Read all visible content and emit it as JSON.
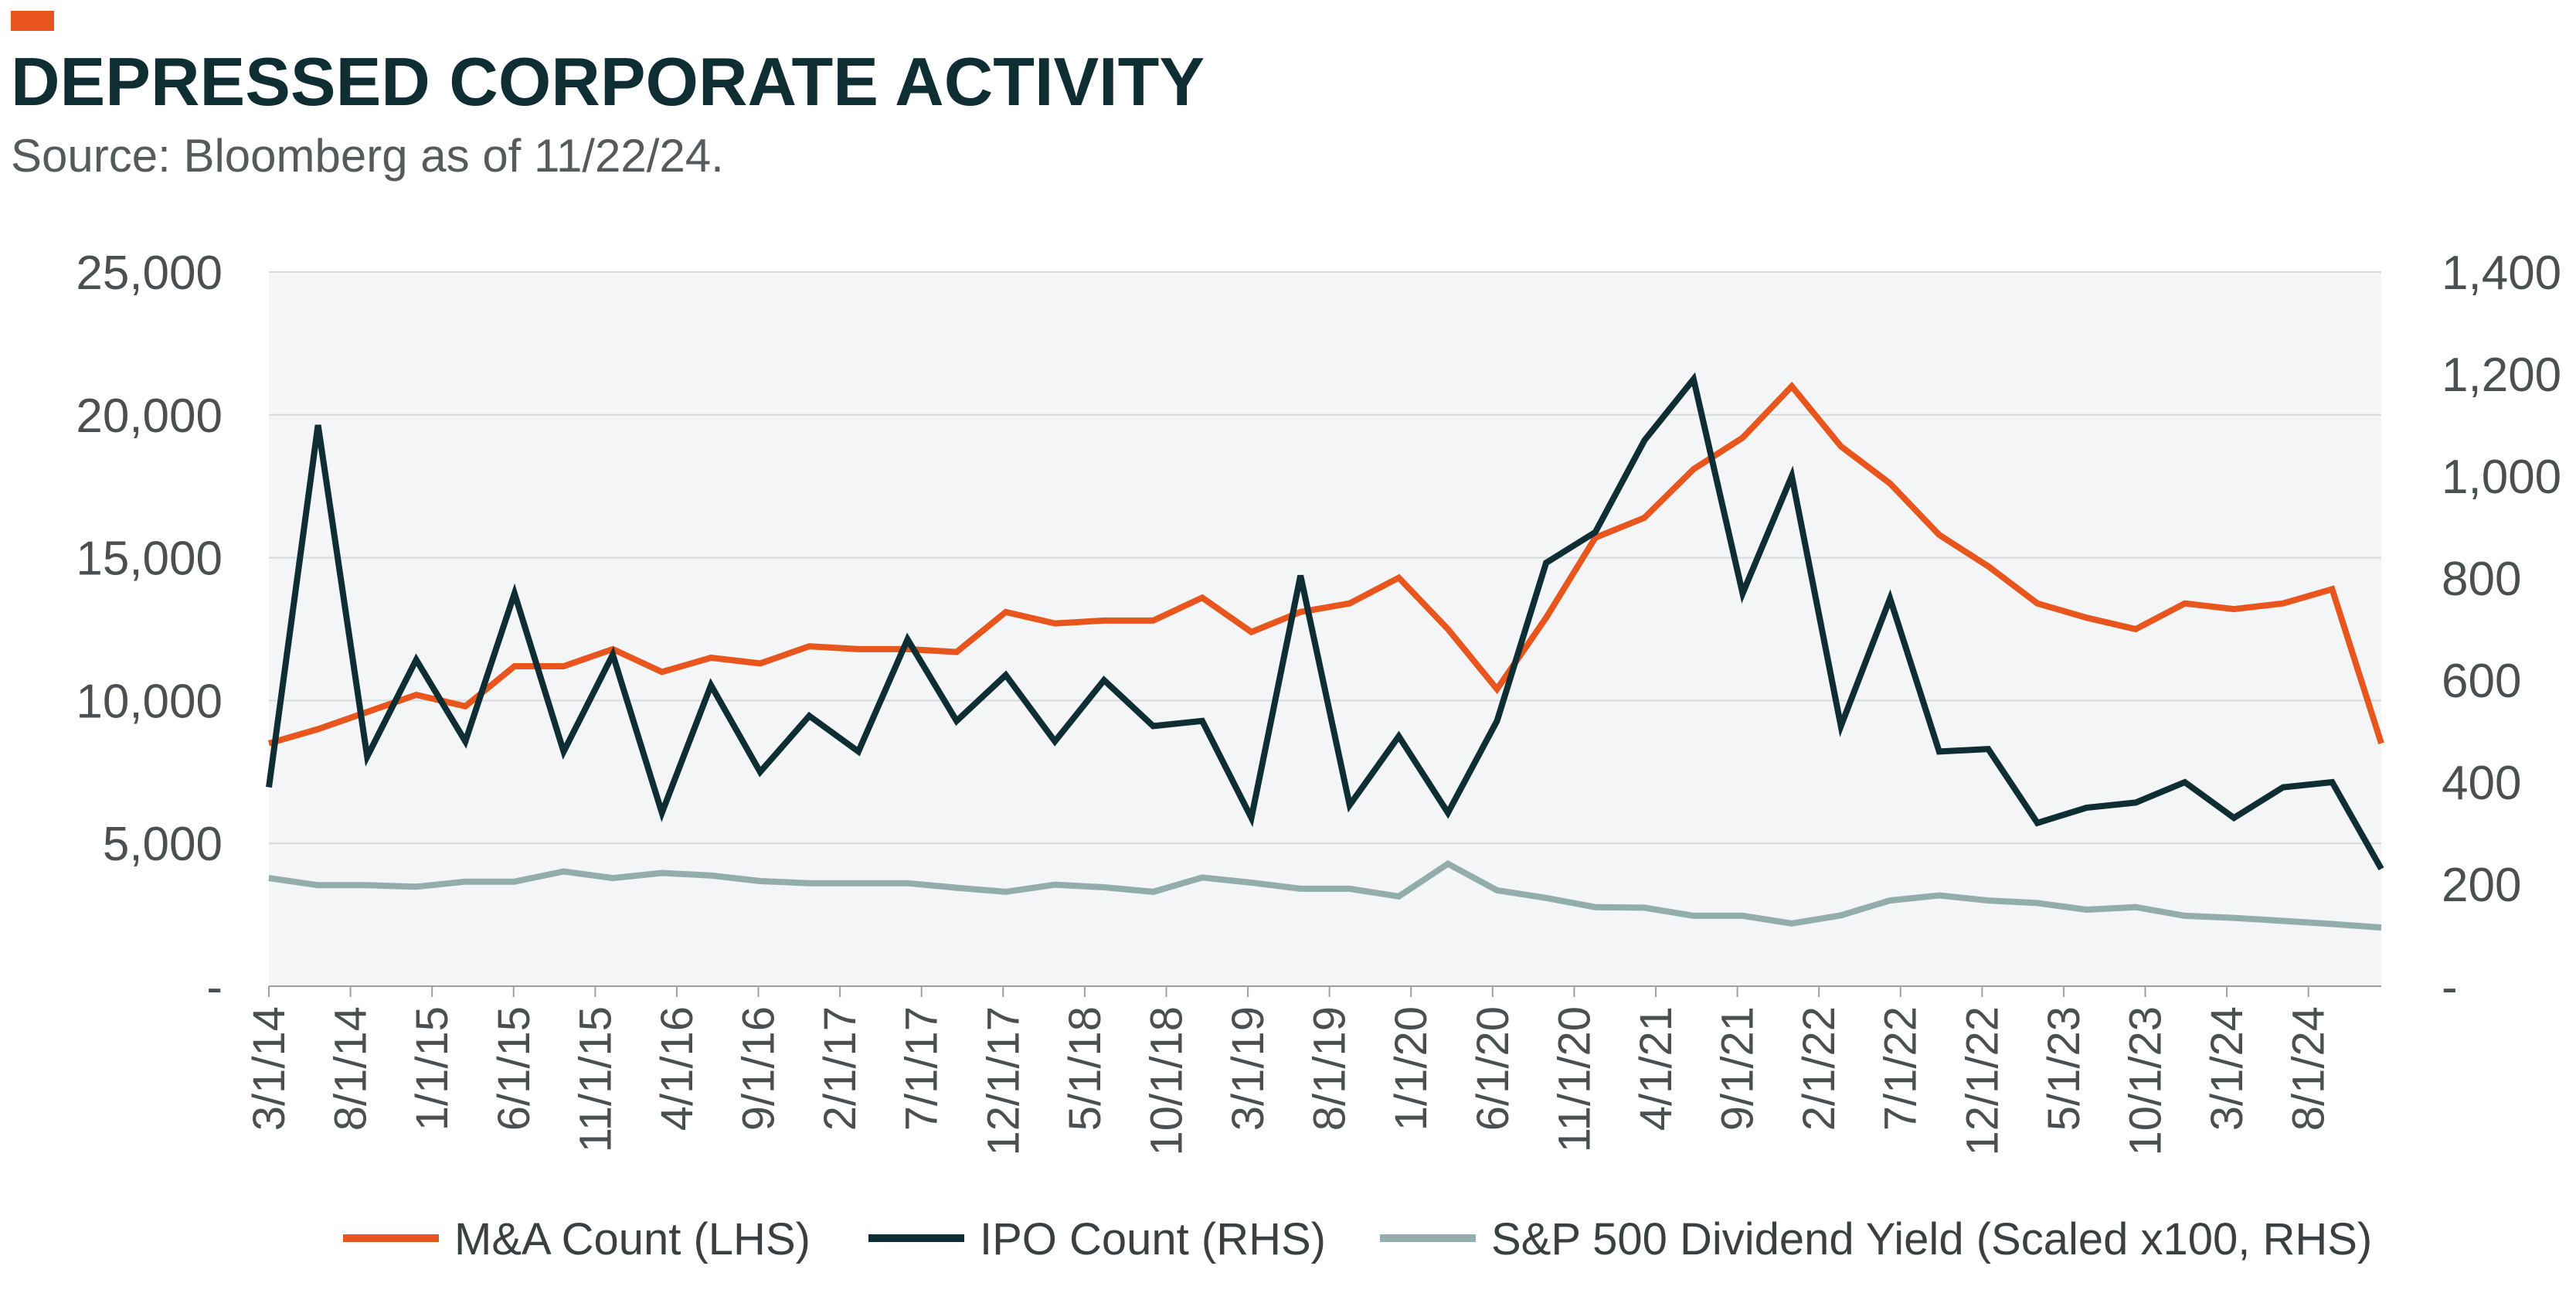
{
  "header": {
    "title": "DEPRESSED CORPORATE ACTIVITY",
    "subtitle": "Source: Bloomberg as of 11/22/24."
  },
  "colors": {
    "accent": "#e8561e",
    "ma": "#e8561e",
    "ipo": "#0f2e33",
    "dividend": "#93adad",
    "plot_background": "#f3f5f7",
    "grid": "#d6dadd"
  },
  "chart_data": {
    "type": "line",
    "title": "DEPRESSED CORPORATE ACTIVITY",
    "x_tick_labels": [
      "3/1/14",
      "8/1/14",
      "1/1/15",
      "6/1/15",
      "11/1/15",
      "4/1/16",
      "9/1/16",
      "2/1/17",
      "7/1/17",
      "12/1/17",
      "5/1/18",
      "10/1/18",
      "3/1/19",
      "8/1/19",
      "1/1/20",
      "6/1/20",
      "11/1/20",
      "4/1/21",
      "9/1/21",
      "2/1/22",
      "7/1/22",
      "12/1/22",
      "5/1/23",
      "10/1/23",
      "3/1/24",
      "8/1/24"
    ],
    "y_left": {
      "ylim": [
        0,
        25000
      ],
      "tick_labels": [
        "-",
        "5,000",
        "10,000",
        "15,000",
        "20,000",
        "25,000"
      ]
    },
    "y_right": {
      "ylim": [
        0,
        1400
      ],
      "tick_labels": [
        "-",
        "200",
        "400",
        "600",
        "800",
        "1,000",
        "1,200",
        "1,400"
      ]
    },
    "grid": true,
    "legend_position": "bottom",
    "series": [
      {
        "name": "M&A Count (LHS)",
        "axis": "left",
        "values": [
          8500,
          9000,
          9600,
          10200,
          9800,
          11200,
          11200,
          11800,
          11000,
          11500,
          11300,
          11900,
          11800,
          11800,
          11700,
          13100,
          12700,
          12800,
          12800,
          13600,
          12400,
          13100,
          13400,
          14300,
          12500,
          10400,
          12900,
          15700,
          16400,
          18100,
          19200,
          21000,
          18900,
          17600,
          15800,
          14700,
          13400,
          12900,
          12500,
          13400,
          13200,
          13400,
          13900,
          8500
        ]
      },
      {
        "name": "IPO Count (RHS)",
        "axis": "right",
        "values": [
          390,
          1100,
          450,
          640,
          480,
          770,
          460,
          650,
          340,
          590,
          420,
          530,
          460,
          680,
          520,
          610,
          480,
          600,
          510,
          520,
          330,
          805,
          355,
          490,
          340,
          520,
          830,
          890,
          1070,
          1190,
          770,
          1000,
          510,
          760,
          460,
          465,
          320,
          350,
          360,
          400,
          330,
          390,
          400,
          230
        ]
      },
      {
        "name": "S&P 500 Dividend Yield (Scaled x100, RHS)",
        "axis": "right",
        "values": [
          212,
          198,
          198,
          195,
          205,
          205,
          225,
          212,
          222,
          217,
          206,
          202,
          202,
          202,
          193,
          185,
          199,
          194,
          185,
          213,
          203,
          191,
          191,
          176,
          240,
          188,
          173,
          155,
          154,
          138,
          138,
          123,
          139,
          168,
          178,
          168,
          163,
          150,
          155,
          138,
          134,
          128,
          122,
          115
        ]
      }
    ]
  }
}
